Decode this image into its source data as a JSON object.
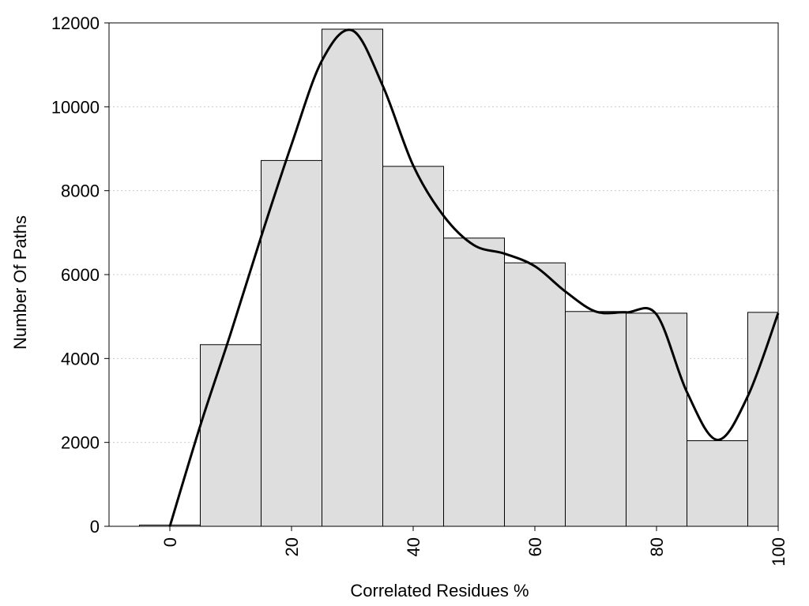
{
  "chart_data": {
    "type": "bar",
    "title": "",
    "xlabel": "Correlated Residues %",
    "ylabel": "Number Of Paths",
    "xlim": [
      -10,
      100
    ],
    "ylim": [
      0,
      12000
    ],
    "x_ticks": [
      0,
      20,
      40,
      60,
      80,
      100
    ],
    "y_ticks": [
      0,
      2000,
      4000,
      6000,
      8000,
      10000,
      12000
    ],
    "grid": "horizontal dotted",
    "bar_color": "#dedede",
    "bar_edge_color": "#000000",
    "bin_width": 10,
    "bin_centers": [
      0,
      10,
      20,
      30,
      40,
      50,
      60,
      70,
      80,
      90,
      100
    ],
    "values": [
      30,
      4330,
      8720,
      11850,
      8580,
      6870,
      6280,
      5120,
      5080,
      2040,
      5100
    ],
    "curve": {
      "color": "#000000",
      "x": [
        0,
        5,
        10,
        15,
        20,
        25,
        30,
        35,
        40,
        45,
        50,
        55,
        60,
        65,
        70,
        75,
        80,
        85,
        90,
        95,
        100
      ],
      "y": [
        0,
        2400,
        4600,
        6900,
        9100,
        11100,
        11820,
        10500,
        8600,
        7400,
        6700,
        6500,
        6200,
        5600,
        5120,
        5100,
        5050,
        3200,
        2060,
        3100,
        5080
      ]
    }
  }
}
